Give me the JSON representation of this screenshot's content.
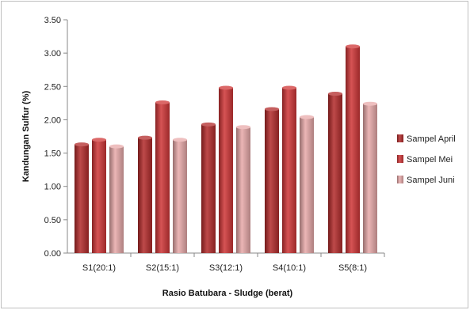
{
  "chart_data": {
    "type": "bar",
    "title": "",
    "xlabel": "Rasio Batubara - Sludge (berat)",
    "ylabel": "Kandungan Sulfur (%)",
    "ylim": [
      0,
      3.5
    ],
    "yticks": [
      "0.00",
      "0.50",
      "1.00",
      "1.50",
      "2.00",
      "2.50",
      "3.00",
      "3.50"
    ],
    "categories": [
      "S1(20:1)",
      "S2(15:1)",
      "S3(12:1)",
      "S4(10:1)",
      "S5(8:1)"
    ],
    "grid": false,
    "legend_position": "right",
    "series": [
      {
        "name": "Sampel April",
        "color": "#b22a2a",
        "values": [
          1.63,
          1.73,
          1.93,
          2.16,
          2.39
        ]
      },
      {
        "name": "Sampel Mei",
        "color": "#cf3536",
        "values": [
          1.7,
          2.26,
          2.48,
          2.48,
          3.1
        ]
      },
      {
        "name": "Sampel Juni",
        "color": "#e8a9a9",
        "values": [
          1.6,
          1.7,
          1.89,
          2.04,
          2.24
        ]
      }
    ]
  }
}
